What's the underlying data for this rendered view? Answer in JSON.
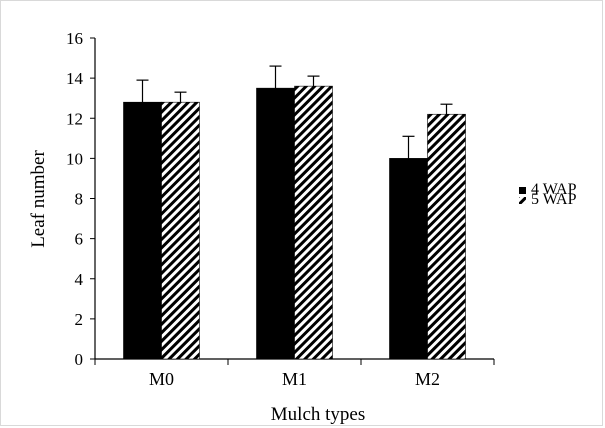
{
  "chart_data": {
    "type": "bar",
    "categories": [
      "M0",
      "M1",
      "M2"
    ],
    "series": [
      {
        "name": "4 WAP",
        "values": [
          12.8,
          13.5,
          10.0
        ],
        "errors": [
          1.1,
          1.1,
          1.1
        ],
        "fill": "solid"
      },
      {
        "name": "5 WAP",
        "values": [
          12.8,
          13.6,
          12.2
        ],
        "errors": [
          0.5,
          0.5,
          0.5
        ],
        "fill": "diagonal-hatch"
      }
    ],
    "title": "",
    "xlabel": "Mulch types",
    "ylabel": "Leaf number",
    "ylim": [
      0,
      16
    ],
    "yticks": [
      0,
      2,
      4,
      6,
      8,
      10,
      12,
      14,
      16
    ],
    "grid": false,
    "legend_position": "right",
    "colors": {
      "bar": "#000000",
      "axis": "#000000",
      "frame": "#d9d9d9"
    }
  }
}
